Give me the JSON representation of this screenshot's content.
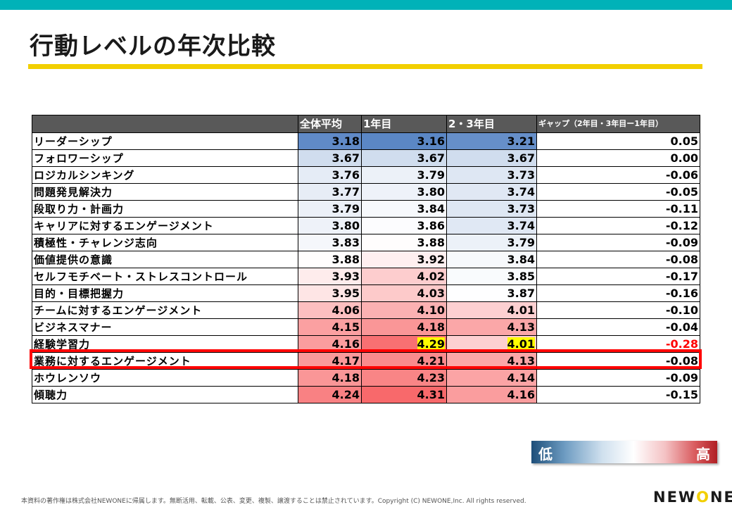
{
  "title": "行動レベルの年次比較",
  "table": {
    "headers": {
      "label": "",
      "overall": "全体平均",
      "year1": "1年目",
      "year23": "2・3年目",
      "gap": "ギャップ（2年目・3年目ー1年目）"
    },
    "rows": [
      {
        "label": "リーダーシップ",
        "overall": "3.18",
        "year1": "3.16",
        "year23": "3.21",
        "gap": "0.05"
      },
      {
        "label": "フォロワーシップ",
        "overall": "3.67",
        "year1": "3.67",
        "year23": "3.67",
        "gap": "0.00"
      },
      {
        "label": "ロジカルシンキング",
        "overall": "3.76",
        "year1": "3.79",
        "year23": "3.73",
        "gap": "-0.06"
      },
      {
        "label": "問題発見解決力",
        "overall": "3.77",
        "year1": "3.80",
        "year23": "3.74",
        "gap": "-0.05"
      },
      {
        "label": "段取り力・計画力",
        "overall": "3.79",
        "year1": "3.84",
        "year23": "3.73",
        "gap": "-0.11"
      },
      {
        "label": "キャリアに対するエンゲージメント",
        "overall": "3.80",
        "year1": "3.86",
        "year23": "3.74",
        "gap": "-0.12"
      },
      {
        "label": "積極性・チャレンジ志向",
        "overall": "3.83",
        "year1": "3.88",
        "year23": "3.79",
        "gap": "-0.09"
      },
      {
        "label": "価値提供の意識",
        "overall": "3.88",
        "year1": "3.92",
        "year23": "3.84",
        "gap": "-0.08"
      },
      {
        "label": "セルフモチベート・ストレスコントロール",
        "overall": "3.93",
        "year1": "4.02",
        "year23": "3.85",
        "gap": "-0.17"
      },
      {
        "label": "目的・目標把握力",
        "overall": "3.95",
        "year1": "4.03",
        "year23": "3.87",
        "gap": "-0.16"
      },
      {
        "label": "チームに対するエンゲージメント",
        "overall": "4.06",
        "year1": "4.10",
        "year23": "4.01",
        "gap": "-0.10"
      },
      {
        "label": "ビジネスマナー",
        "overall": "4.15",
        "year1": "4.18",
        "year23": "4.13",
        "gap": "-0.04"
      },
      {
        "label": "経験学習力",
        "overall": "4.16",
        "year1": "4.29",
        "year23": "4.01",
        "gap": "-0.28",
        "highlight": true
      },
      {
        "label": "業務に対するエンゲージメント",
        "overall": "4.17",
        "year1": "4.21",
        "year23": "4.13",
        "gap": "-0.08"
      },
      {
        "label": "ホウレンソウ",
        "overall": "4.18",
        "year1": "4.23",
        "year23": "4.14",
        "gap": "-0.09"
      },
      {
        "label": "傾聴力",
        "overall": "4.24",
        "year1": "4.31",
        "year23": "4.16",
        "gap": "-0.15"
      }
    ]
  },
  "colors": {
    "low": "#5b87c5",
    "mid": "#ffffff",
    "high": "#f8696b",
    "highlight": "#ff0000",
    "cell_highlight": "#ffff00"
  },
  "legend": {
    "low": "低",
    "high": "高"
  },
  "footer": "本資料の著作権は株式会社NEWONEに帰属します。無断活用、転載、公表、変更、複製、譲渡することは禁止されています。Copyright (C) NEWONE,Inc.  All rights reserved.",
  "logo": {
    "part1": "NEW",
    "o": "O",
    "part2": "NE"
  }
}
